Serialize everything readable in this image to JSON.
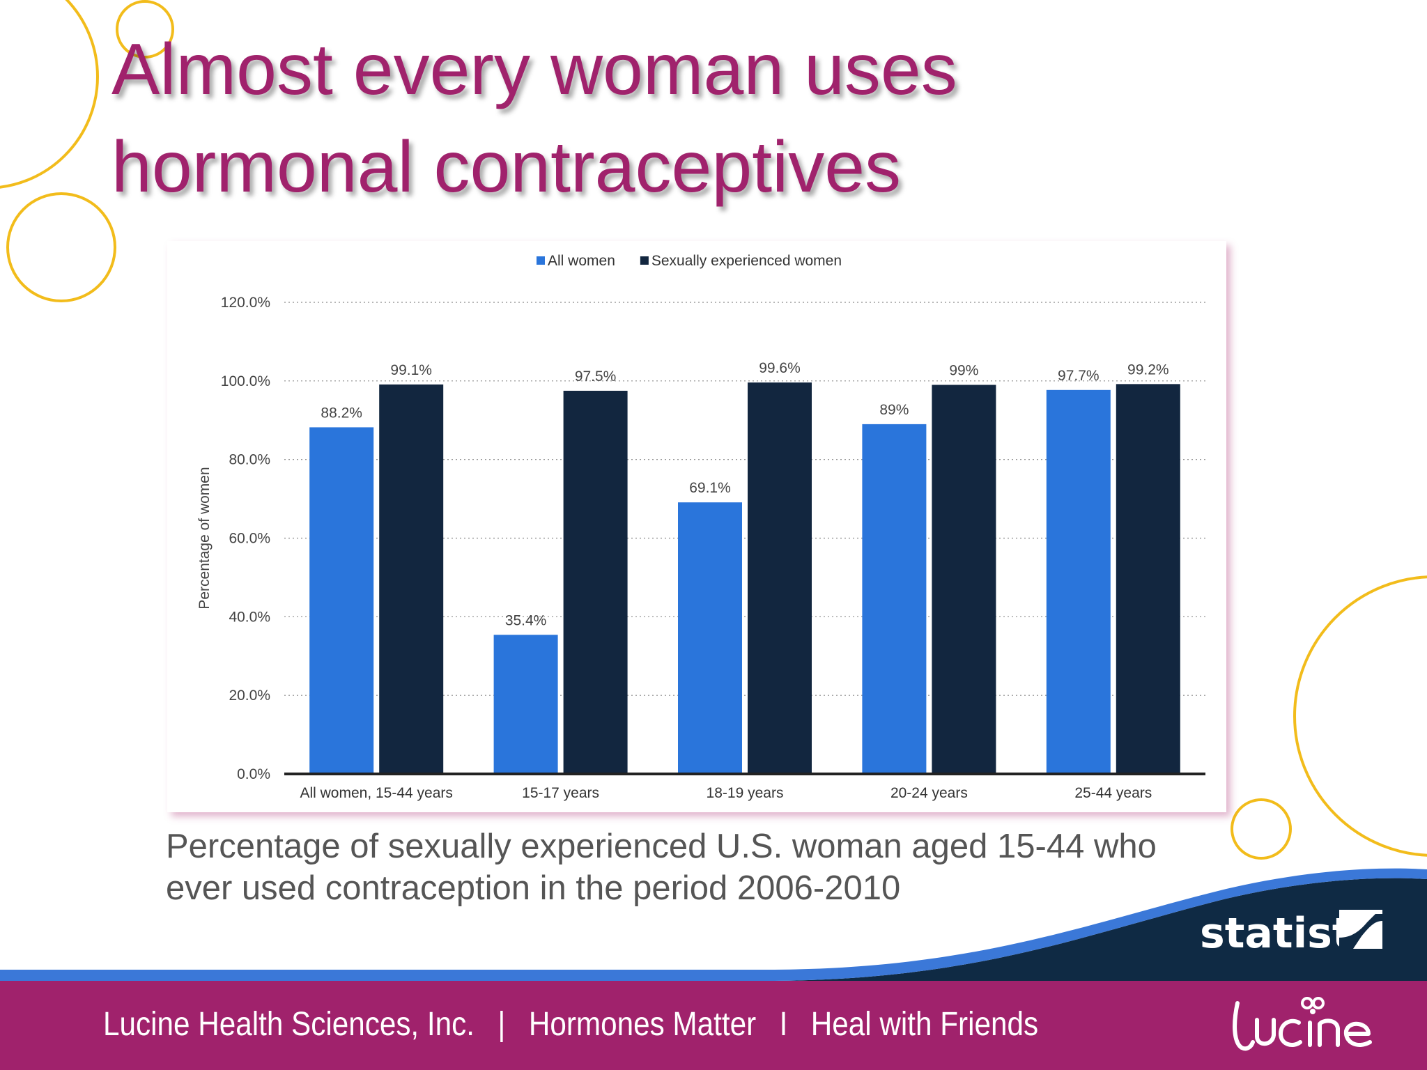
{
  "slide": {
    "title_lines": [
      "Almost every woman uses",
      "hormonal contraceptives"
    ],
    "caption_lines": [
      "Percentage of sexually experienced U.S. woman aged 15-44 who",
      "ever used contraception in the period 2006-2010"
    ],
    "footer": {
      "company": "Lucine Health Sciences, Inc.",
      "sep1": "|",
      "item2": "Hormones Matter",
      "sep2": "I",
      "item3": "Heal with Friends"
    },
    "source_logo": "statista",
    "brand_logo": "lucine",
    "colors": {
      "title": "#a0226c",
      "footer": "#a0226c",
      "accent_circles": "#f2bc1b",
      "statista_band": "#0f2a44",
      "statista_wave": "#3b78d8"
    }
  },
  "chart_data": {
    "type": "bar",
    "categories": [
      "All women, 15-44 years",
      "15-17 years",
      "18-19 years",
      "20-24 years",
      "25-44 years"
    ],
    "series": [
      {
        "name": "All women",
        "color": "#2a75db",
        "values": [
          88.2,
          35.4,
          69.1,
          89,
          97.7
        ],
        "labels": [
          "88.2%",
          "35.4%",
          "69.1%",
          "89%",
          "97.7%"
        ]
      },
      {
        "name": "Sexually experienced women",
        "color": "#12263f",
        "values": [
          99.1,
          97.5,
          99.6,
          99,
          99.2
        ],
        "labels": [
          "99.1%",
          "97.5%",
          "99.6%",
          "99%",
          "99.2%"
        ]
      }
    ],
    "ylabel": "Percentage of women",
    "xlabel": "",
    "ylim": [
      0,
      120
    ],
    "yticks": [
      0,
      20,
      40,
      60,
      80,
      100,
      120
    ],
    "ytick_labels": [
      "0.0%",
      "20.0%",
      "40.0%",
      "60.0%",
      "80.0%",
      "100.0%",
      "120.0%"
    ],
    "grid": true,
    "legend": "top-center"
  }
}
